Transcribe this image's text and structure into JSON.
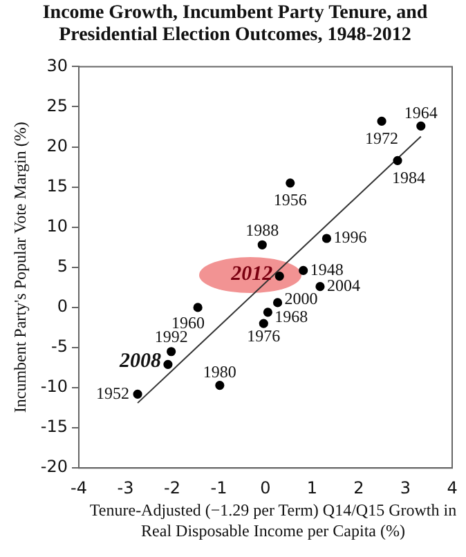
{
  "chart_data": {
    "type": "scatter",
    "title": "Income Growth, Incumbent Party Tenure, and Presidential Election Outcomes, 1948-2012",
    "xlabel": "Tenure-Adjusted (−1.29 per Term) Q14/Q15 Growth in Real Disposable Income per Capita (%)",
    "ylabel": "Incumbent Party's Popular Vote Margin (%)",
    "series": [
      {
        "color": "#000000",
        "marker": "circle",
        "x": [
          0.81,
          -2.74,
          0.53,
          -1.45,
          3.33,
          0.05,
          2.49,
          -0.04,
          -0.98,
          2.83,
          -0.07,
          -2.02,
          1.31,
          0.26,
          1.17,
          -2.09,
          0.3
        ],
        "values": [
          4.6,
          -10.8,
          15.5,
          0.0,
          22.6,
          -0.6,
          23.2,
          -2.0,
          -9.7,
          18.3,
          7.8,
          -5.5,
          8.6,
          0.6,
          2.6,
          -7.1,
          3.9
        ]
      },
      {
        "type": "line",
        "marker": "none",
        "color": "#333333",
        "x": [
          -2.74,
          3.33
        ],
        "values": [
          -11.9,
          21.3
        ]
      }
    ],
    "annotations": [
      {
        "text": "1948",
        "x": 0.81,
        "y": 4.6
      },
      {
        "text": "1952",
        "x": -2.74,
        "y": -10.8
      },
      {
        "text": "1956",
        "x": 0.53,
        "y": 15.5
      },
      {
        "text": "1960",
        "x": -1.45,
        "y": 0.0
      },
      {
        "text": "1964",
        "x": 3.33,
        "y": 22.6
      },
      {
        "text": "1968",
        "x": 0.05,
        "y": -0.6
      },
      {
        "text": "1972",
        "x": 2.49,
        "y": 23.2
      },
      {
        "text": "1976",
        "x": -0.04,
        "y": -2.0
      },
      {
        "text": "1980",
        "x": -0.98,
        "y": -9.7
      },
      {
        "text": "1984",
        "x": 2.83,
        "y": 18.3
      },
      {
        "text": "1988",
        "x": -0.07,
        "y": 7.8
      },
      {
        "text": "1992",
        "x": -2.02,
        "y": -5.5
      },
      {
        "text": "1996",
        "x": 1.31,
        "y": 8.6
      },
      {
        "text": "2000",
        "x": 0.26,
        "y": 0.6
      },
      {
        "text": "2004",
        "x": 1.17,
        "y": 2.6
      },
      {
        "text": "2008",
        "x": -2.09,
        "y": -7.1
      },
      {
        "text": "2012",
        "x": 0.3,
        "y": 3.9
      }
    ],
    "xlim": [
      -4,
      4
    ],
    "xticks": [
      -4,
      -3,
      -2,
      -1,
      0,
      1,
      2,
      3,
      4
    ],
    "ylim": [
      -20,
      30
    ],
    "yticks": [
      -20,
      -15,
      -10,
      -5,
      0,
      5,
      10,
      15,
      20,
      25,
      30
    ],
    "grid": false,
    "legend": false
  }
}
